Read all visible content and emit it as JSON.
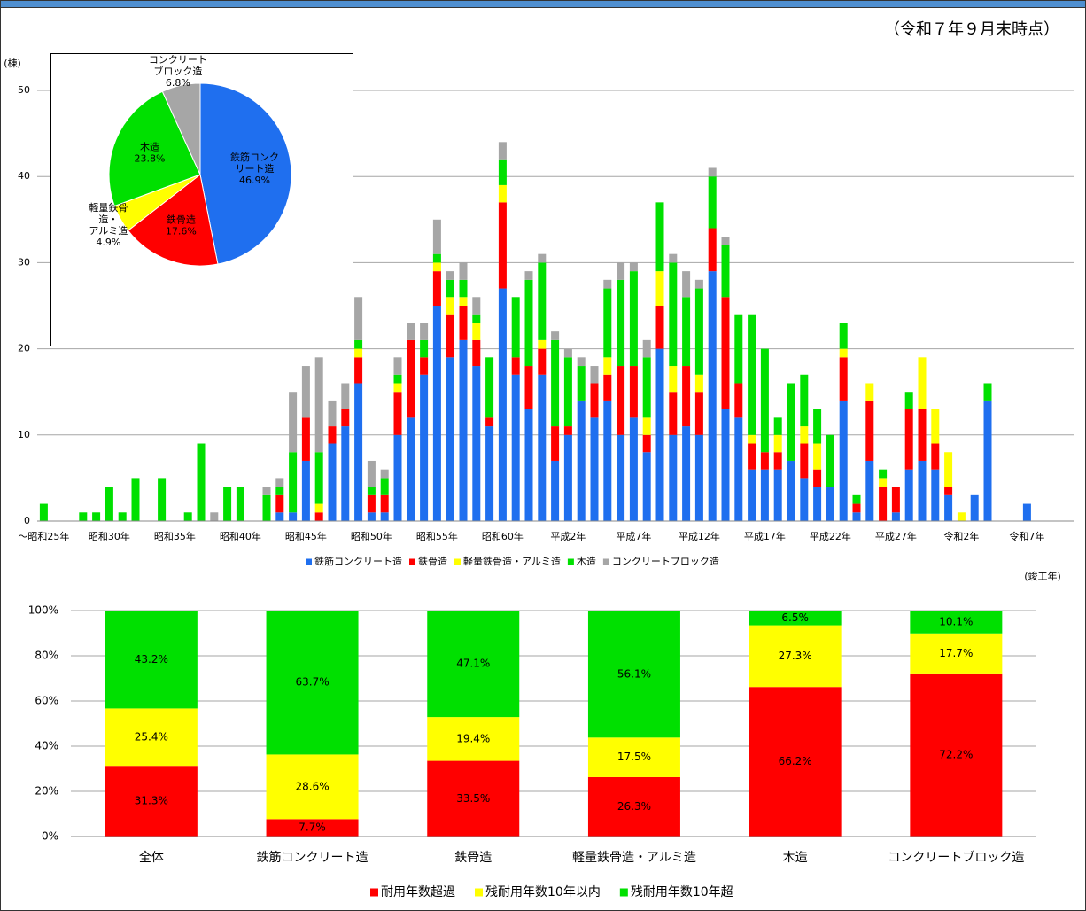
{
  "note": "（令和７年９月末時点）",
  "chart_data": [
    {
      "type": "bar",
      "stacked": true,
      "y_label": "(棟)",
      "x_label": "(竣工年)",
      "ylim": [
        0,
        50
      ],
      "yticks": [
        0,
        10,
        20,
        30,
        40,
        50
      ],
      "grid": true,
      "legend": "bottom",
      "categories": [
        "～昭和25年",
        null,
        null,
        null,
        null,
        "昭和30年",
        null,
        null,
        null,
        null,
        "昭和35年",
        null,
        null,
        null,
        null,
        "昭和40年",
        null,
        null,
        null,
        null,
        "昭和45年",
        null,
        null,
        null,
        null,
        "昭和50年",
        null,
        null,
        null,
        null,
        "昭和55年",
        null,
        null,
        null,
        null,
        "昭和60年",
        null,
        null,
        null,
        null,
        "平成2年",
        null,
        null,
        null,
        null,
        "平成7年",
        null,
        null,
        null,
        null,
        "平成12年",
        null,
        null,
        null,
        null,
        "平成17年",
        null,
        null,
        null,
        null,
        "平成22年",
        null,
        null,
        null,
        null,
        "平成27年",
        null,
        null,
        null,
        null,
        "令和2年",
        null,
        null,
        null,
        null,
        "令和7年"
      ],
      "series": [
        {
          "name": "鉄筋コンクリート造",
          "color": "#1f6fef",
          "values": [
            0,
            0,
            0,
            0,
            0,
            0,
            0,
            0,
            0,
            0,
            0,
            0,
            0,
            0,
            0,
            0,
            0,
            0,
            1,
            1,
            7,
            0,
            9,
            11,
            16,
            1,
            1,
            10,
            12,
            17,
            25,
            19,
            21,
            18,
            11,
            27,
            17,
            13,
            17,
            7,
            10,
            14,
            12,
            14,
            10,
            12,
            8,
            20,
            10,
            11,
            10,
            29,
            13,
            12,
            6,
            6,
            6,
            7,
            5,
            4,
            4,
            14,
            1,
            7,
            0,
            1,
            6,
            7,
            6,
            3,
            0,
            3,
            14,
            0,
            0,
            2
          ]
        },
        {
          "name": "鉄骨造",
          "color": "#ff0000",
          "values": [
            0,
            0,
            0,
            0,
            0,
            0,
            0,
            0,
            0,
            0,
            0,
            0,
            0,
            0,
            0,
            0,
            0,
            0,
            2,
            0,
            5,
            1,
            2,
            2,
            3,
            2,
            2,
            5,
            9,
            2,
            4,
            5,
            4,
            3,
            1,
            10,
            2,
            5,
            3,
            4,
            1,
            0,
            4,
            3,
            8,
            6,
            2,
            5,
            5,
            7,
            5,
            5,
            13,
            4,
            3,
            2,
            2,
            0,
            4,
            2,
            0,
            5,
            1,
            7,
            4,
            3,
            7,
            6,
            3,
            1,
            0,
            0,
            0,
            0,
            0,
            0
          ]
        },
        {
          "name": "軽量鉄骨造・アルミ造",
          "color": "#ffff00",
          "values": [
            0,
            0,
            0,
            0,
            0,
            0,
            0,
            0,
            0,
            0,
            0,
            0,
            0,
            0,
            0,
            0,
            0,
            0,
            0,
            0,
            0,
            1,
            0,
            0,
            1,
            0,
            0,
            1,
            0,
            0,
            1,
            2,
            1,
            2,
            0,
            2,
            0,
            0,
            1,
            0,
            0,
            0,
            0,
            2,
            0,
            0,
            2,
            4,
            3,
            0,
            2,
            0,
            0,
            0,
            1,
            0,
            2,
            0,
            2,
            3,
            0,
            1,
            0,
            2,
            1,
            0,
            0,
            6,
            4,
            4,
            1,
            0,
            0,
            0,
            0,
            0
          ]
        },
        {
          "name": "木造",
          "color": "#00e000",
          "values": [
            2,
            0,
            0,
            1,
            1,
            4,
            1,
            5,
            0,
            5,
            0,
            1,
            9,
            0,
            4,
            4,
            0,
            3,
            1,
            7,
            0,
            6,
            0,
            0,
            1,
            1,
            2,
            1,
            0,
            2,
            1,
            2,
            2,
            1,
            7,
            3,
            7,
            10,
            9,
            10,
            8,
            4,
            0,
            8,
            10,
            11,
            7,
            8,
            12,
            8,
            10,
            6,
            6,
            8,
            14,
            12,
            2,
            9,
            6,
            4,
            6,
            3,
            1,
            0,
            1,
            0,
            2,
            0,
            0,
            0,
            0,
            0,
            2,
            0,
            0,
            0
          ]
        },
        {
          "name": "コンクリートブロック造",
          "color": "#a6a6a6",
          "values": [
            0,
            0,
            0,
            0,
            0,
            0,
            0,
            0,
            0,
            0,
            0,
            0,
            0,
            1,
            0,
            0,
            0,
            1,
            1,
            7,
            6,
            11,
            3,
            3,
            5,
            3,
            1,
            2,
            2,
            2,
            4,
            1,
            2,
            2,
            0,
            2,
            0,
            1,
            1,
            1,
            1,
            1,
            2,
            1,
            2,
            1,
            2,
            0,
            1,
            3,
            1,
            1,
            1,
            0,
            0,
            0,
            0,
            0,
            0,
            0,
            0,
            0,
            0,
            0,
            0,
            0,
            0,
            0,
            0,
            0,
            0,
            0,
            0,
            0,
            0,
            0
          ]
        }
      ]
    },
    {
      "type": "pie",
      "labels": [
        [
          "鉄筋コンク",
          "リート造"
        ],
        [
          "鉄骨造"
        ],
        [
          "軽量鉄骨",
          "造・",
          "アルミ造"
        ],
        [
          "木造"
        ],
        [
          "コンクリート",
          "ブロック造"
        ]
      ],
      "values": [
        46.9,
        17.6,
        4.9,
        23.8,
        6.8
      ],
      "value_labels": [
        "46.9%",
        "17.6%",
        "4.9%",
        "23.8%",
        "6.8%"
      ],
      "colors": [
        "#1f6fef",
        "#ff0000",
        "#ffff00",
        "#00e000",
        "#a6a6a6"
      ]
    },
    {
      "type": "bar",
      "stacked": true,
      "ylim": [
        0,
        100
      ],
      "grid": true,
      "legend": "bottom",
      "yticks": [
        {
          "value": 0,
          "label": "0%"
        },
        {
          "value": 20,
          "label": "20%"
        },
        {
          "value": 40,
          "label": "40%"
        },
        {
          "value": 60,
          "label": "60%"
        },
        {
          "value": 80,
          "label": "80%"
        },
        {
          "value": 100,
          "label": "100%"
        }
      ],
      "categories": [
        "全体",
        "鉄筋コンクリート造",
        "鉄骨造",
        "軽量鉄骨造・アルミ造",
        "木造",
        "コンクリートブロック造"
      ],
      "series": [
        {
          "name": "耐用年数超過",
          "color": "#ff0000",
          "values": [
            31.3,
            7.7,
            33.5,
            26.3,
            66.2,
            72.2
          ],
          "value_labels": [
            "31.3%",
            "7.7%",
            "33.5%",
            "26.3%",
            "66.2%",
            "72.2%"
          ]
        },
        {
          "name": "残耐用年数10年以内",
          "color": "#ffff00",
          "values": [
            25.4,
            28.6,
            19.4,
            17.5,
            27.3,
            17.7
          ],
          "value_labels": [
            "25.4%",
            "28.6%",
            "19.4%",
            "17.5%",
            "27.3%",
            "17.7%"
          ]
        },
        {
          "name": "残耐用年数10年超",
          "color": "#00e000",
          "values": [
            43.2,
            63.7,
            47.1,
            56.1,
            6.5,
            10.1
          ],
          "value_labels": [
            "43.2%",
            "63.7%",
            "47.1%",
            "56.1%",
            "6.5%",
            "10.1%"
          ]
        }
      ]
    }
  ]
}
